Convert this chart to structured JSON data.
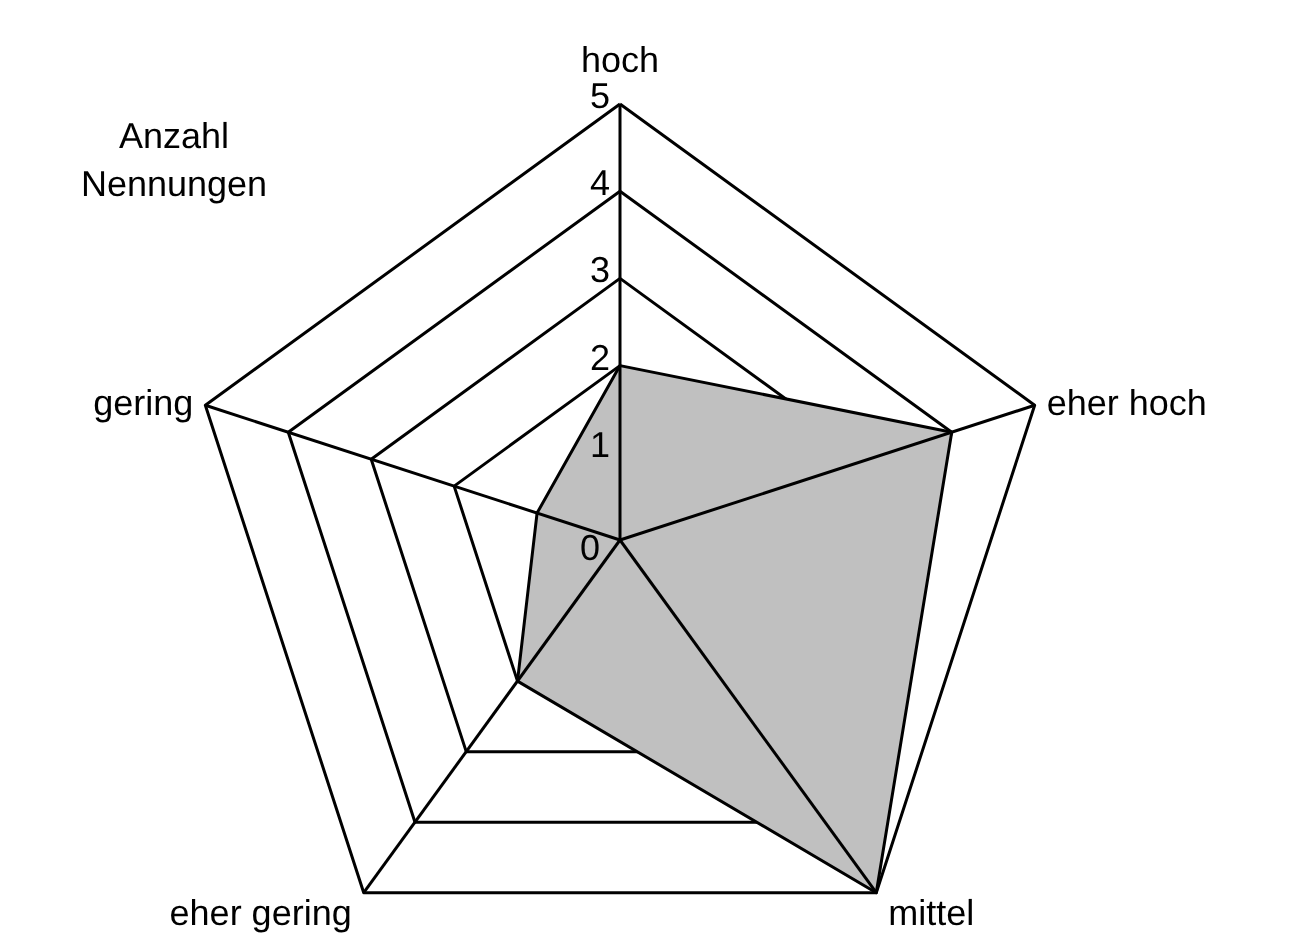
{
  "chart_data": {
    "type": "radar",
    "ylabel": "Anzahl Nennungen",
    "categories": [
      "hoch",
      "eher hoch",
      "mittel",
      "eher gering",
      "gering"
    ],
    "series": [
      {
        "color": "#c0c0c0",
        "values": [
          2,
          4,
          5,
          2,
          1
        ]
      }
    ],
    "ylim": [
      0,
      5
    ],
    "yticks": [
      0,
      1,
      2,
      3,
      4,
      5
    ],
    "grid": true
  }
}
